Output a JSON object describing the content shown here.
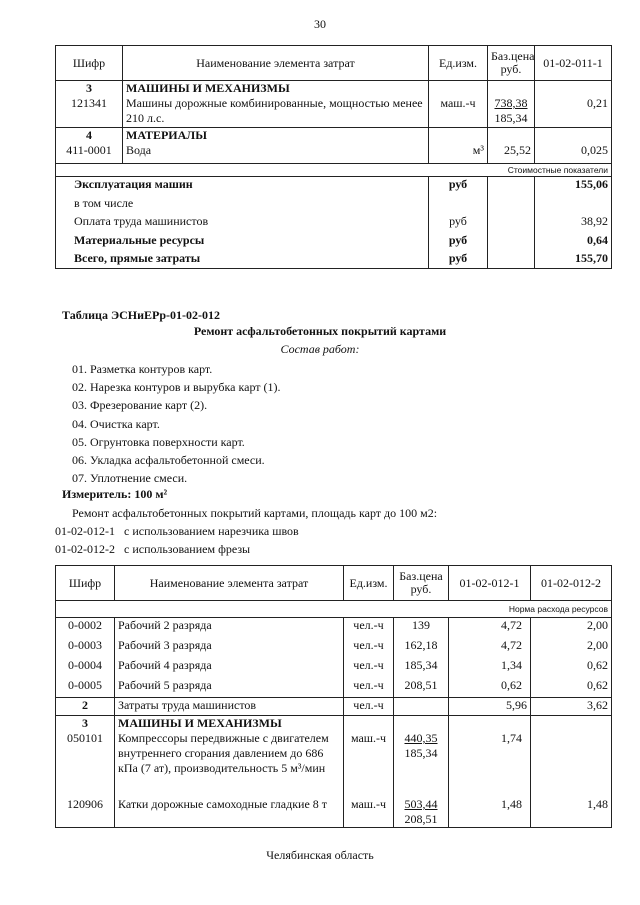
{
  "page_number": "30",
  "table1": {
    "headers": [
      "Шифр",
      "Наименование элемента затрат",
      "Ед.изм.",
      "Баз.цена руб.",
      "01-02-011-1"
    ],
    "sections": [
      {
        "num": "3",
        "title": "МАШИНЫ И МЕХАНИЗМЫ",
        "code": "121341",
        "name": "Машины дорожные комбинированные, мощностью менее 210 л.с.",
        "unit": "маш.-ч",
        "price": "738,38",
        "price2": "185,34",
        "value": "0,21"
      },
      {
        "num": "4",
        "title": "МАТЕРИАЛЫ",
        "code": "411-0001",
        "name": "Вода",
        "unit": "м³",
        "price": "25,52",
        "value": "0,025"
      }
    ],
    "cost_label": "Стоимостные показатели",
    "summary": [
      {
        "label": "Эксплуатация машин",
        "unit": "руб",
        "value": "155,06",
        "bold": true
      },
      {
        "label": "в том числе",
        "unit": "",
        "value": ""
      },
      {
        "label": "Оплата труда машинистов",
        "unit": "руб",
        "value": "38,92"
      },
      {
        "label": "Материальные ресурсы",
        "unit": "руб",
        "value": "0,64",
        "bold": true
      },
      {
        "label": "Всего, прямые затраты",
        "unit": "руб",
        "value": "155,70",
        "bold": true
      }
    ]
  },
  "section": {
    "table_id": "Таблица  ЭСНиЕРр-01-02-012",
    "title": "Ремонт асфальтобетонных покрытий картами",
    "composition_label": "Состав работ:",
    "works": [
      "01. Разметка контуров карт.",
      "02. Нарезка контуров и вырубка карт (1).",
      "03. Фрезерование карт (2).",
      "04. Очистка карт.",
      "05. Огрунтовка поверхности карт.",
      "06. Укладка асфальтобетонной смеси.",
      "07. Уплотнение смеси."
    ],
    "meter": "Измеритель: 100 м²",
    "description": "Ремонт асфальтобетонных покрытий картами, площадь карт до 100 м2:",
    "variants": [
      {
        "code": "01-02-012-1",
        "text": "с использованием нарезчика швов"
      },
      {
        "code": "01-02-012-2",
        "text": "с использованием фрезы"
      }
    ]
  },
  "table2": {
    "headers": [
      "Шифр",
      "Наименование элемента затрат",
      "Ед.изм.",
      "Баз.цена руб.",
      "01-02-012-1",
      "01-02-012-2"
    ],
    "norm_label": "Норма расхода ресурсов",
    "workers": [
      {
        "code": "0-0002",
        "name": "Рабочий 2 разряда",
        "unit": "чел.-ч",
        "price": "139",
        "v1": "4,72",
        "v2": "2,00"
      },
      {
        "code": "0-0003",
        "name": "Рабочий 3 разряда",
        "unit": "чел.-ч",
        "price": "162,18",
        "v1": "4,72",
        "v2": "2,00"
      },
      {
        "code": "0-0004",
        "name": "Рабочий 4 разряда",
        "unit": "чел.-ч",
        "price": "185,34",
        "v1": "1,34",
        "v2": "0,62"
      },
      {
        "code": "0-0005",
        "name": "Рабочий 5 разряда",
        "unit": "чел.-ч",
        "price": "208,51",
        "v1": "0,62",
        "v2": "0,62"
      }
    ],
    "operators": {
      "num": "2",
      "name": "Затраты труда машинистов",
      "unit": "чел.-ч",
      "v1": "5,96",
      "v2": "3,62"
    },
    "machines": {
      "num": "3",
      "title": "МАШИНЫ И МЕХАНИЗМЫ",
      "items": [
        {
          "code": "050101",
          "name": "Компрессоры передвижные с двигателем внутреннего сгорания давлением до 686 кПа (7 ат), производительность 5 м³/мин",
          "unit": "маш.-ч",
          "price": "440,35",
          "price2": "185,34",
          "v1": "1,74",
          "v2": ""
        },
        {
          "code": "120906",
          "name": "Катки дорожные самоходные гладкие 8 т",
          "unit": "маш.-ч",
          "price": "503,44",
          "price2": "208,51",
          "v1": "1,48",
          "v2": "1,48"
        }
      ]
    }
  },
  "footer": "Челябинская область"
}
